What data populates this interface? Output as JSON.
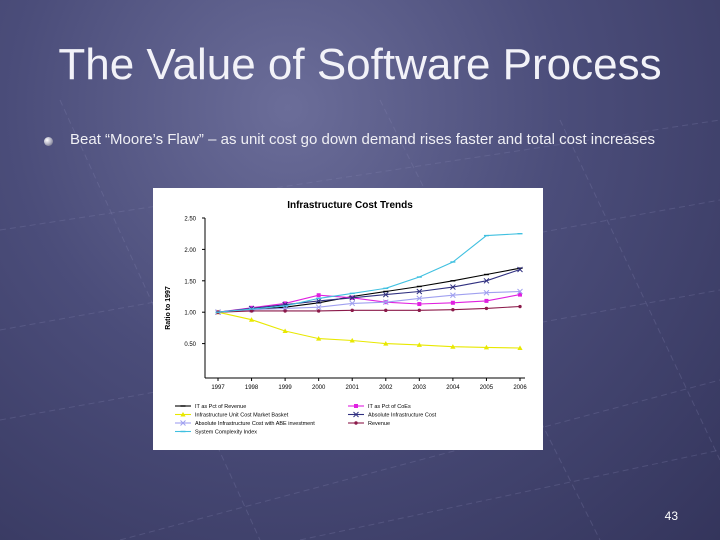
{
  "slide": {
    "title": "The Value of Software Process",
    "bullet": "Beat “Moore’s Flaw” – as unit cost go down demand rises faster and total cost increases",
    "page_number": "43"
  },
  "chart_data": {
    "type": "line",
    "title": "Infrastructure Cost Trends",
    "xlabel": "",
    "ylabel": "Ratio to 1997",
    "categories": [
      "1997",
      "1998",
      "1999",
      "2000",
      "2001",
      "2002",
      "2003",
      "2004",
      "2005",
      "2006"
    ],
    "ylim": [
      0,
      2.5
    ],
    "yticks": [
      "0.50",
      "1.00",
      "1.50",
      "2.00",
      "2.50"
    ],
    "grid": false,
    "legend_position": "bottom",
    "series": [
      {
        "name": "IT as Pct of Revenue",
        "color": "#000000",
        "marker": "dash",
        "values": [
          1.0,
          1.04,
          1.08,
          1.15,
          1.25,
          1.33,
          1.41,
          1.5,
          1.6,
          1.7
        ]
      },
      {
        "name": "IT as Pct of CoEs",
        "color": "#e020e0",
        "marker": "square",
        "values": [
          1.0,
          1.07,
          1.14,
          1.27,
          1.23,
          1.16,
          1.13,
          1.15,
          1.18,
          1.28
        ]
      },
      {
        "name": "Infrastructure Unit Cost Market Basket",
        "color": "#e8e800",
        "marker": "triangle",
        "values": [
          1.0,
          0.88,
          0.7,
          0.58,
          0.55,
          0.5,
          0.48,
          0.45,
          0.44,
          0.43
        ]
      },
      {
        "name": "Absolute Infrastructure Cost",
        "color": "#303080",
        "marker": "x",
        "values": [
          1.0,
          1.06,
          1.12,
          1.18,
          1.23,
          1.28,
          1.33,
          1.4,
          1.5,
          1.68
        ]
      },
      {
        "name": "Absolute Infrastructure Cost with ABE investment",
        "color": "#a0a0f0",
        "marker": "x",
        "values": [
          1.0,
          1.04,
          1.06,
          1.08,
          1.14,
          1.16,
          1.22,
          1.27,
          1.31,
          1.33
        ]
      },
      {
        "name": "Revenue",
        "color": "#8b1a4a",
        "marker": "dot",
        "values": [
          1.0,
          1.02,
          1.02,
          1.02,
          1.03,
          1.03,
          1.03,
          1.04,
          1.06,
          1.09
        ]
      },
      {
        "name": "System Complexity Index",
        "color": "#40c0e0",
        "marker": "dash",
        "values": [
          1.0,
          1.05,
          1.1,
          1.22,
          1.3,
          1.38,
          1.56,
          1.8,
          2.22,
          2.25
        ]
      }
    ]
  }
}
